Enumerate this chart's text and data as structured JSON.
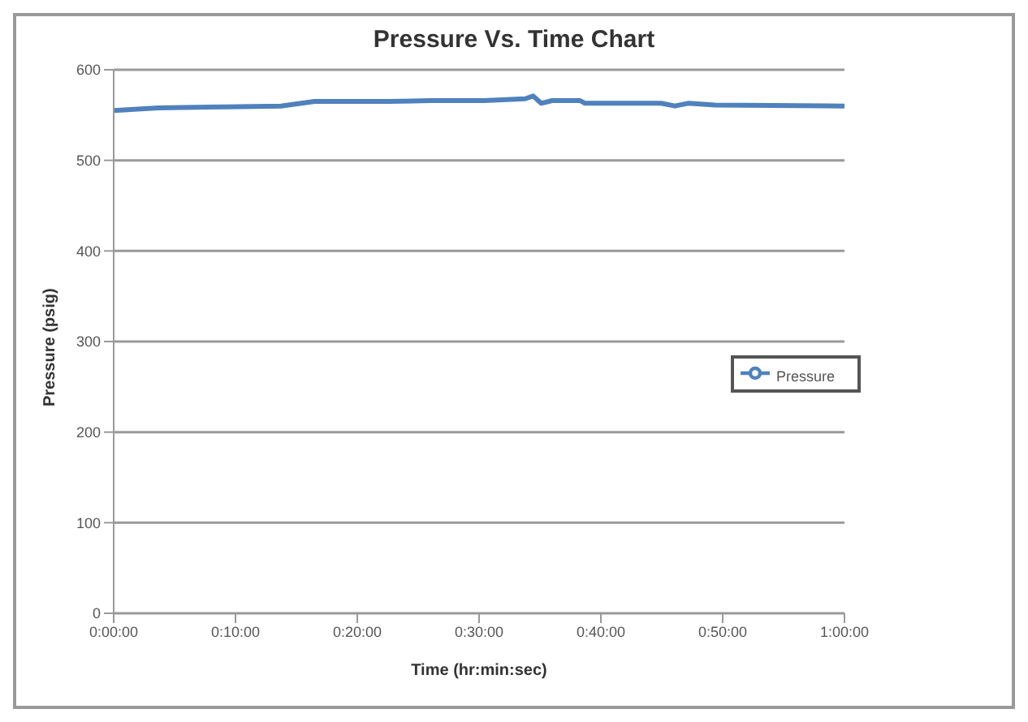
{
  "chart_data": {
    "type": "line",
    "title": "Pressure Vs. Time Chart",
    "xlabel": "Time (hr:min:sec)",
    "ylabel": "Pressure (psig)",
    "x": [
      0,
      0.061,
      0.154,
      0.229,
      0.257,
      0.275,
      0.377,
      0.433,
      0.507,
      0.563,
      0.574,
      0.585,
      0.6,
      0.638,
      0.645,
      0.749,
      0.768,
      0.786,
      0.823,
      1
    ],
    "series": [
      {
        "name": "Pressure",
        "color": "#4f81bd",
        "values": [
          555,
          558,
          559,
          560,
          563,
          565,
          565,
          566,
          566,
          568,
          571,
          563,
          566,
          566,
          563,
          563,
          560,
          563,
          561,
          560
        ]
      }
    ],
    "xlim": [
      0,
      1
    ],
    "xticks": [
      {
        "value": 0,
        "label": "0:00:00"
      },
      {
        "value": 0.16667,
        "label": "0:10:00"
      },
      {
        "value": 0.33333,
        "label": "0:20:00"
      },
      {
        "value": 0.5,
        "label": "0:30:00"
      },
      {
        "value": 0.66667,
        "label": "0:40:00"
      },
      {
        "value": 0.83333,
        "label": "0:50:00"
      },
      {
        "value": 1,
        "label": "1:00:00"
      }
    ],
    "ylim": [
      0,
      600
    ],
    "yticks": [
      0,
      100,
      200,
      300,
      400,
      500,
      600
    ],
    "grid": "y",
    "legend": "right",
    "marker": "none",
    "line_style": "solid"
  }
}
